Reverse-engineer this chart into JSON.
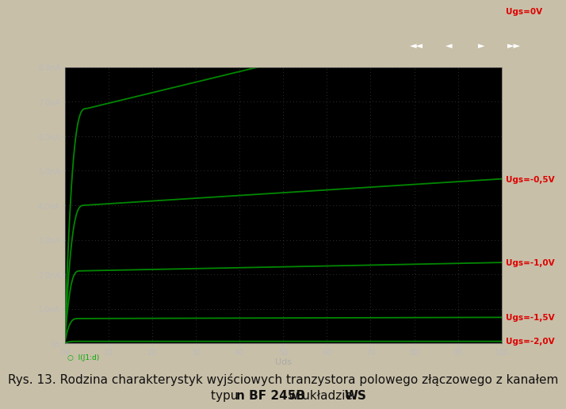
{
  "outer_bg_color": "#c8bfa8",
  "plot_bg_color": "#000000",
  "dot_color": "#404040",
  "line_color": "#008800",
  "label_color": "#dd0000",
  "tick_color": "#bbbbbb",
  "xlabel_color": "#aaaaaa",
  "xmin": 0,
  "xmax": 100,
  "ymin": 0,
  "ymax": 8.0,
  "yticks": [
    0,
    1.0,
    2.0,
    3.0,
    4.0,
    5.0,
    6.0,
    7.0,
    8.0
  ],
  "ytick_labels": [
    "0n",
    "1.0nA",
    "2.0nA",
    "3.0nA",
    "4.0nA",
    "5.0nA",
    "6.0nA",
    "7.0nA",
    "8.0nA"
  ],
  "xticks": [
    0,
    10,
    20,
    30,
    40,
    50,
    60,
    70,
    80,
    90,
    100
  ],
  "xtick_labels": [
    "0V",
    "10",
    "20",
    "30",
    "40",
    "50",
    "60",
    "70",
    "80",
    "90",
    "100"
  ],
  "curves": [
    {
      "label": "Ugs=0V",
      "idss": 6.8,
      "knee": 5.0,
      "slope": 0.0045
    },
    {
      "label": "Ugs=-0,5V",
      "idss": 4.0,
      "knee": 4.5,
      "slope": 0.002
    },
    {
      "label": "Ugs=-1,0V",
      "idss": 2.1,
      "knee": 3.5,
      "slope": 0.0012
    },
    {
      "label": "Ugs=-1,5V",
      "idss": 0.72,
      "knee": 3.0,
      "slope": 0.0005
    },
    {
      "label": "Ugs=-2,0V",
      "idss": 0.06,
      "knee": 2.5,
      "slope": 5e-05
    }
  ],
  "legend_text": "I(J1:d)",
  "xlabel": "Uds",
  "caption_line1": "Rys. 13. Rodzina charakterystyk wyjściowych tranzystora polowego złączowego z kanałem",
  "caption_seg1": "typu ",
  "caption_seg2": "n BF 245B",
  "caption_seg3": " w układzie ",
  "caption_seg4": "WS",
  "caption_fontsize": 11
}
